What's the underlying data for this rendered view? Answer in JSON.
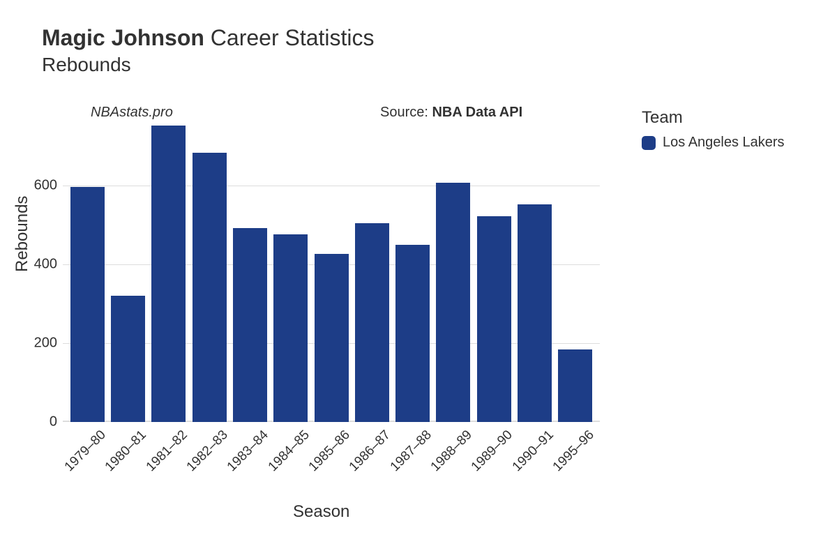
{
  "title": {
    "player": "Magic Johnson",
    "rest": " Career Statistics",
    "subtitle": "Rebounds"
  },
  "watermark": "NBAstats.pro",
  "source": {
    "prefix": "Source: ",
    "name": "NBA Data API"
  },
  "legend": {
    "title": "Team",
    "items": [
      {
        "label": "Los Angeles Lakers",
        "color": "#1d3d87"
      }
    ]
  },
  "chart": {
    "type": "bar",
    "xlabel": "Season",
    "ylabel": "Rebounds",
    "ylim": [
      0,
      760
    ],
    "yticks": [
      0,
      200,
      400,
      600
    ],
    "grid_color": "#dddddd",
    "background_color": "#ffffff",
    "bar_color": "#1d3d87",
    "bar_width": 0.84,
    "title_fontsize": 32,
    "subtitle_fontsize": 28,
    "label_fontsize": 24,
    "tick_fontsize": 20,
    "categories": [
      "1979–80",
      "1980–81",
      "1981–82",
      "1982–83",
      "1983–84",
      "1984–85",
      "1985–86",
      "1986–87",
      "1987–88",
      "1988–89",
      "1989–90",
      "1990–91",
      "1995–96"
    ],
    "values": [
      596,
      320,
      751,
      683,
      491,
      476,
      426,
      504,
      449,
      607,
      522,
      551,
      183
    ]
  }
}
